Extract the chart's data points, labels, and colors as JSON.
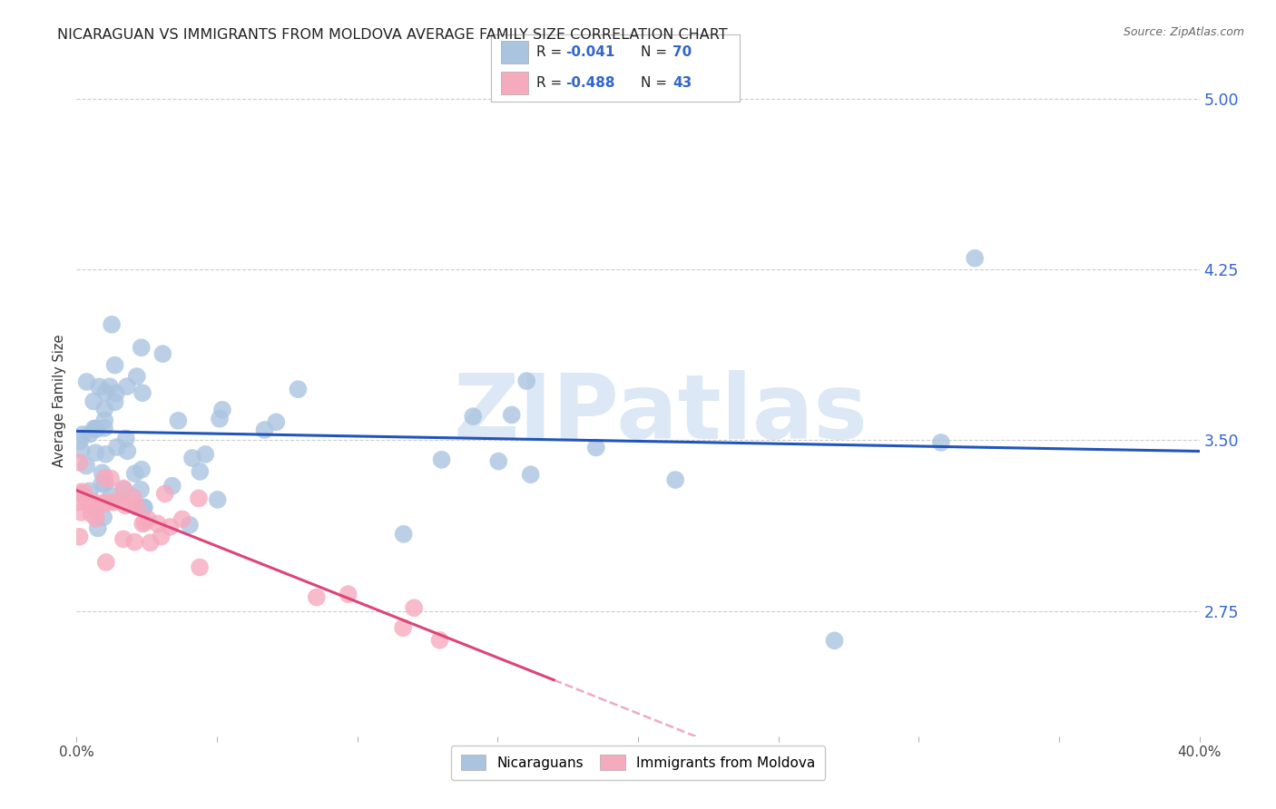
{
  "title": "NICARAGUAN VS IMMIGRANTS FROM MOLDOVA AVERAGE FAMILY SIZE CORRELATION CHART",
  "source": "Source: ZipAtlas.com",
  "ylabel": "Average Family Size",
  "watermark": "ZIPatlas",
  "xmin": 0.0,
  "xmax": 0.4,
  "ymin": 2.2,
  "ymax": 5.15,
  "yticks_right": [
    2.75,
    3.5,
    4.25,
    5.0
  ],
  "blue_color": "#aac4e0",
  "pink_color": "#f5aabe",
  "trendline_blue": "#2255bb",
  "trendline_pink": "#dd4477",
  "background_color": "#ffffff",
  "grid_color": "#cccccc",
  "title_fontsize": 11.5,
  "tick_label_color": "#3366cc",
  "watermark_color": "#dce8f5",
  "legend_r1": "-0.041",
  "legend_n1": "70",
  "legend_r2": "-0.488",
  "legend_n2": "43"
}
